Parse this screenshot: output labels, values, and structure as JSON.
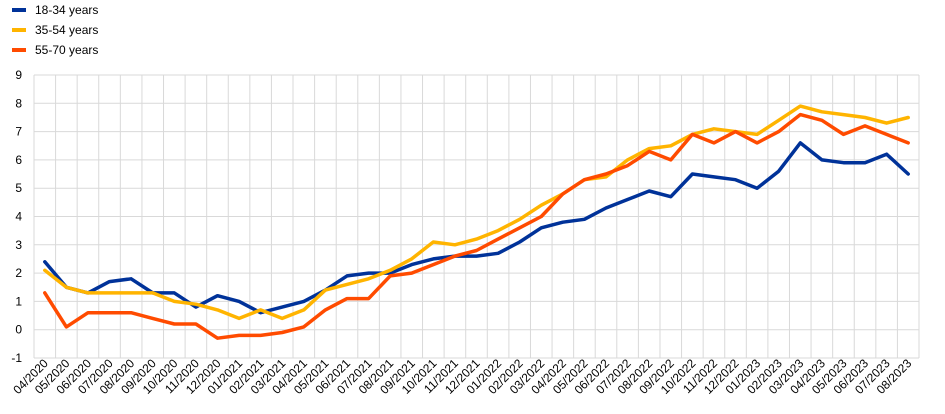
{
  "chart_data": {
    "type": "line",
    "title": "",
    "xlabel": "",
    "ylabel": "",
    "ylim": [
      -1,
      9
    ],
    "yticks": [
      -1,
      0,
      1,
      2,
      3,
      4,
      5,
      6,
      7,
      8,
      9
    ],
    "grid": true,
    "legend_position": "top-left",
    "categories": [
      "04/2020",
      "05/2020",
      "06/2020",
      "07/2020",
      "08/2020",
      "09/2020",
      "10/2020",
      "11/2020",
      "12/2020",
      "01/2021",
      "02/2021",
      "03/2021",
      "04/2021",
      "05/2021",
      "06/2021",
      "07/2021",
      "08/2021",
      "09/2021",
      "10/2021",
      "11/2021",
      "12/2021",
      "01/2022",
      "02/2022",
      "03/2022",
      "04/2022",
      "05/2022",
      "06/2022",
      "07/2022",
      "08/2022",
      "09/2022",
      "10/2022",
      "11/2022",
      "12/2022",
      "01/2023",
      "02/2023",
      "03/2023",
      "04/2023",
      "05/2023",
      "06/2023",
      "07/2023",
      "08/2023"
    ],
    "series": [
      {
        "name": "18-34 years",
        "color": "#003299",
        "values": [
          2.4,
          1.5,
          1.3,
          1.7,
          1.8,
          1.3,
          1.3,
          0.8,
          1.2,
          1.0,
          0.6,
          0.8,
          1.0,
          1.4,
          1.9,
          2.0,
          2.0,
          2.3,
          2.5,
          2.6,
          2.6,
          2.7,
          3.1,
          3.6,
          3.8,
          3.9,
          4.3,
          4.6,
          4.9,
          4.7,
          5.5,
          5.4,
          5.3,
          5.0,
          5.6,
          6.6,
          6.0,
          5.9,
          5.9,
          6.2,
          5.5
        ]
      },
      {
        "name": "35-54 years",
        "color": "#FFB400",
        "values": [
          2.1,
          1.5,
          1.3,
          1.3,
          1.3,
          1.3,
          1.0,
          0.9,
          0.7,
          0.4,
          0.7,
          0.4,
          0.7,
          1.4,
          1.6,
          1.8,
          2.1,
          2.5,
          3.1,
          3.0,
          3.2,
          3.5,
          3.9,
          4.4,
          4.8,
          5.3,
          5.4,
          6.0,
          6.4,
          6.5,
          6.9,
          7.1,
          7.0,
          6.9,
          7.4,
          7.9,
          7.7,
          7.6,
          7.5,
          7.3,
          7.5
        ]
      },
      {
        "name": "55-70 years",
        "color": "#FF4B00",
        "values": [
          1.3,
          0.1,
          0.6,
          0.6,
          0.6,
          0.4,
          0.2,
          0.2,
          -0.3,
          -0.2,
          -0.2,
          -0.1,
          0.1,
          0.7,
          1.1,
          1.1,
          1.9,
          2.0,
          2.3,
          2.6,
          2.8,
          3.2,
          3.6,
          4.0,
          4.8,
          5.3,
          5.5,
          5.8,
          6.3,
          6.0,
          6.9,
          6.6,
          7.0,
          6.6,
          7.0,
          7.6,
          7.4,
          6.9,
          7.2,
          6.9,
          6.6
        ]
      }
    ]
  }
}
